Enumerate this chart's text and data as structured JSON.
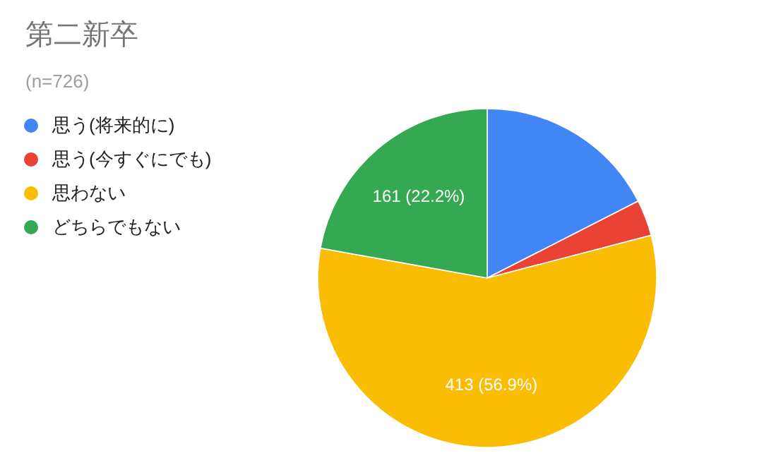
{
  "chart_data": {
    "type": "pie",
    "title": "第二新卒",
    "subtitle": "(n=726)",
    "categories": [
      "思う(将来的に)",
      "思う(今すぐにでも)",
      "思わない",
      "どちらでもない"
    ],
    "values": [
      127,
      25,
      413,
      161
    ],
    "colors": [
      "#4285f4",
      "#ea4335",
      "#fbbc04",
      "#34a853"
    ],
    "value_labels": [
      null,
      null,
      "413 (56.9%)",
      "161 (22.2%)"
    ],
    "legend": "left"
  }
}
